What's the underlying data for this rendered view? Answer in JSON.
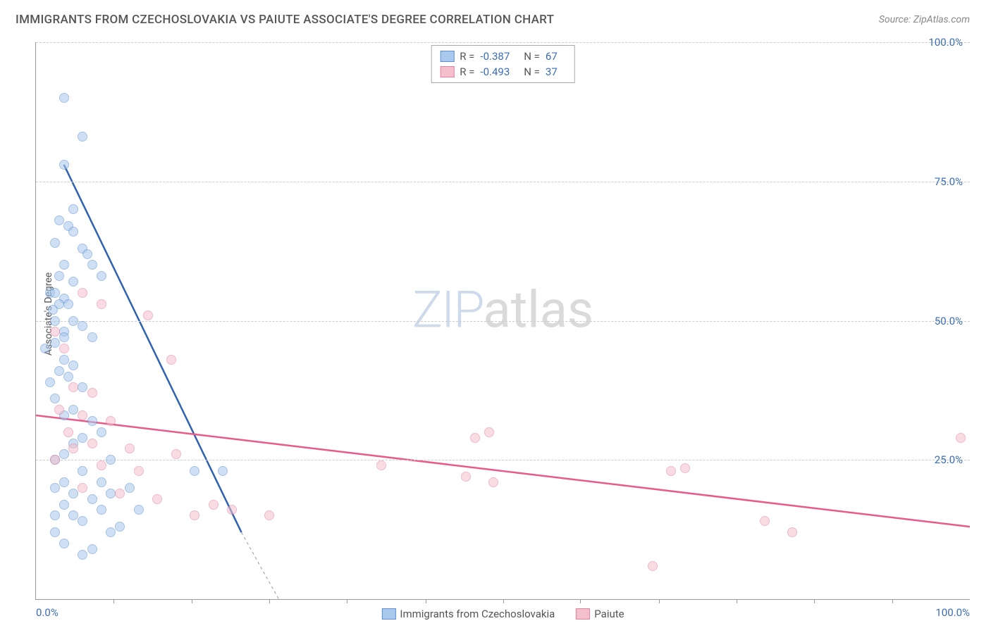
{
  "header": {
    "title": "IMMIGRANTS FROM CZECHOSLOVAKIA VS PAIUTE ASSOCIATE'S DEGREE CORRELATION CHART",
    "source_prefix": "Source: ",
    "source_name": "ZipAtlas.com"
  },
  "chart": {
    "type": "scatter",
    "ylabel": "Associate's Degree",
    "xlim": [
      0,
      100
    ],
    "ylim": [
      0,
      100
    ],
    "yticks": [
      {
        "v": 25,
        "label": "25.0%"
      },
      {
        "v": 50,
        "label": "50.0%"
      },
      {
        "v": 75,
        "label": "75.0%"
      },
      {
        "v": 100,
        "label": "100.0%"
      }
    ],
    "xticks_minor": [
      8.3,
      16.7,
      25,
      33.3,
      41.7,
      50,
      58.3,
      66.7,
      75,
      83.3,
      91.7
    ],
    "xtick_labels": [
      {
        "v": 0,
        "label": "0.0%"
      },
      {
        "v": 100,
        "label": "100.0%"
      }
    ],
    "grid_color": "#cccccc",
    "background_color": "#ffffff",
    "marker_radius": 7,
    "marker_opacity": 0.55,
    "series": [
      {
        "name": "Immigrants from Czechoslovakia",
        "color_fill": "#a9c8ec",
        "color_stroke": "#5b8fd0",
        "line_color": "#2e62b0",
        "line_width": 2.5,
        "R": "-0.387",
        "N": "67",
        "trend": {
          "x1": 3,
          "y1": 78,
          "x2": 22,
          "y2": 12,
          "dash_to_x": 28,
          "dash_to_y": -6
        },
        "points": [
          [
            3,
            90
          ],
          [
            5,
            83
          ],
          [
            3,
            78
          ],
          [
            4,
            70
          ],
          [
            2.5,
            68
          ],
          [
            3.5,
            67
          ],
          [
            4,
            66
          ],
          [
            2,
            64
          ],
          [
            5,
            63
          ],
          [
            5.5,
            62
          ],
          [
            3,
            60
          ],
          [
            6,
            60
          ],
          [
            2.5,
            58
          ],
          [
            4,
            57
          ],
          [
            7,
            58
          ],
          [
            1.5,
            55
          ],
          [
            2,
            55
          ],
          [
            3,
            54
          ],
          [
            2.5,
            53
          ],
          [
            3.5,
            53
          ],
          [
            1.8,
            52
          ],
          [
            4,
            50
          ],
          [
            2,
            50
          ],
          [
            5,
            49
          ],
          [
            3,
            48
          ],
          [
            6,
            47
          ],
          [
            2,
            46
          ],
          [
            1,
            45
          ],
          [
            3,
            43
          ],
          [
            4,
            42
          ],
          [
            2.5,
            41
          ],
          [
            3.5,
            40
          ],
          [
            1.5,
            39
          ],
          [
            5,
            38
          ],
          [
            2,
            36
          ],
          [
            4,
            34
          ],
          [
            3,
            33
          ],
          [
            6,
            32
          ],
          [
            7,
            30
          ],
          [
            5,
            29
          ],
          [
            4,
            28
          ],
          [
            3,
            26
          ],
          [
            2,
            25
          ],
          [
            8,
            25
          ],
          [
            5,
            23
          ],
          [
            17,
            23
          ],
          [
            3,
            21
          ],
          [
            2,
            20
          ],
          [
            4,
            19
          ],
          [
            20,
            23
          ],
          [
            6,
            18
          ],
          [
            3,
            17
          ],
          [
            7,
            16
          ],
          [
            2,
            15
          ],
          [
            5,
            14
          ],
          [
            4,
            15
          ],
          [
            6,
            9
          ],
          [
            3,
            10
          ],
          [
            8,
            12
          ],
          [
            5,
            8
          ],
          [
            2,
            12
          ],
          [
            9,
            13
          ],
          [
            7,
            21
          ],
          [
            8,
            19
          ],
          [
            10,
            20
          ],
          [
            11,
            16
          ],
          [
            3,
            47
          ]
        ]
      },
      {
        "name": "Paiute",
        "color_fill": "#f5c0cd",
        "color_stroke": "#e37fa0",
        "line_color": "#e85b89",
        "line_width": 2.5,
        "R": "-0.493",
        "N": "37",
        "trend": {
          "x1": 0,
          "y1": 33,
          "x2": 100,
          "y2": 13
        },
        "points": [
          [
            2,
            48
          ],
          [
            5,
            55
          ],
          [
            7,
            53
          ],
          [
            3,
            45
          ],
          [
            4,
            38
          ],
          [
            6,
            37
          ],
          [
            2.5,
            34
          ],
          [
            5,
            33
          ],
          [
            8,
            32
          ],
          [
            3.5,
            30
          ],
          [
            6,
            28
          ],
          [
            4,
            27
          ],
          [
            10,
            27
          ],
          [
            2,
            25
          ],
          [
            7,
            24
          ],
          [
            14.5,
            43
          ],
          [
            12,
            51
          ],
          [
            5,
            20
          ],
          [
            9,
            19
          ],
          [
            21,
            16
          ],
          [
            19,
            17
          ],
          [
            17,
            15
          ],
          [
            15,
            26
          ],
          [
            13,
            18
          ],
          [
            11,
            23
          ],
          [
            25,
            15
          ],
          [
            37,
            24
          ],
          [
            47,
            29
          ],
          [
            48.5,
            30
          ],
          [
            46,
            22
          ],
          [
            49,
            21
          ],
          [
            68,
            23
          ],
          [
            69.5,
            23.5
          ],
          [
            66,
            6
          ],
          [
            78,
            14
          ],
          [
            81,
            12
          ],
          [
            99,
            29
          ]
        ]
      }
    ],
    "watermark": {
      "part1": "ZIP",
      "part2": "atlas"
    }
  },
  "legend_bottom": [
    {
      "label": "Immigrants from Czechoslovakia",
      "fill": "#a9c8ec",
      "stroke": "#5b8fd0"
    },
    {
      "label": "Paiute",
      "fill": "#f5c0cd",
      "stroke": "#e37fa0"
    }
  ]
}
